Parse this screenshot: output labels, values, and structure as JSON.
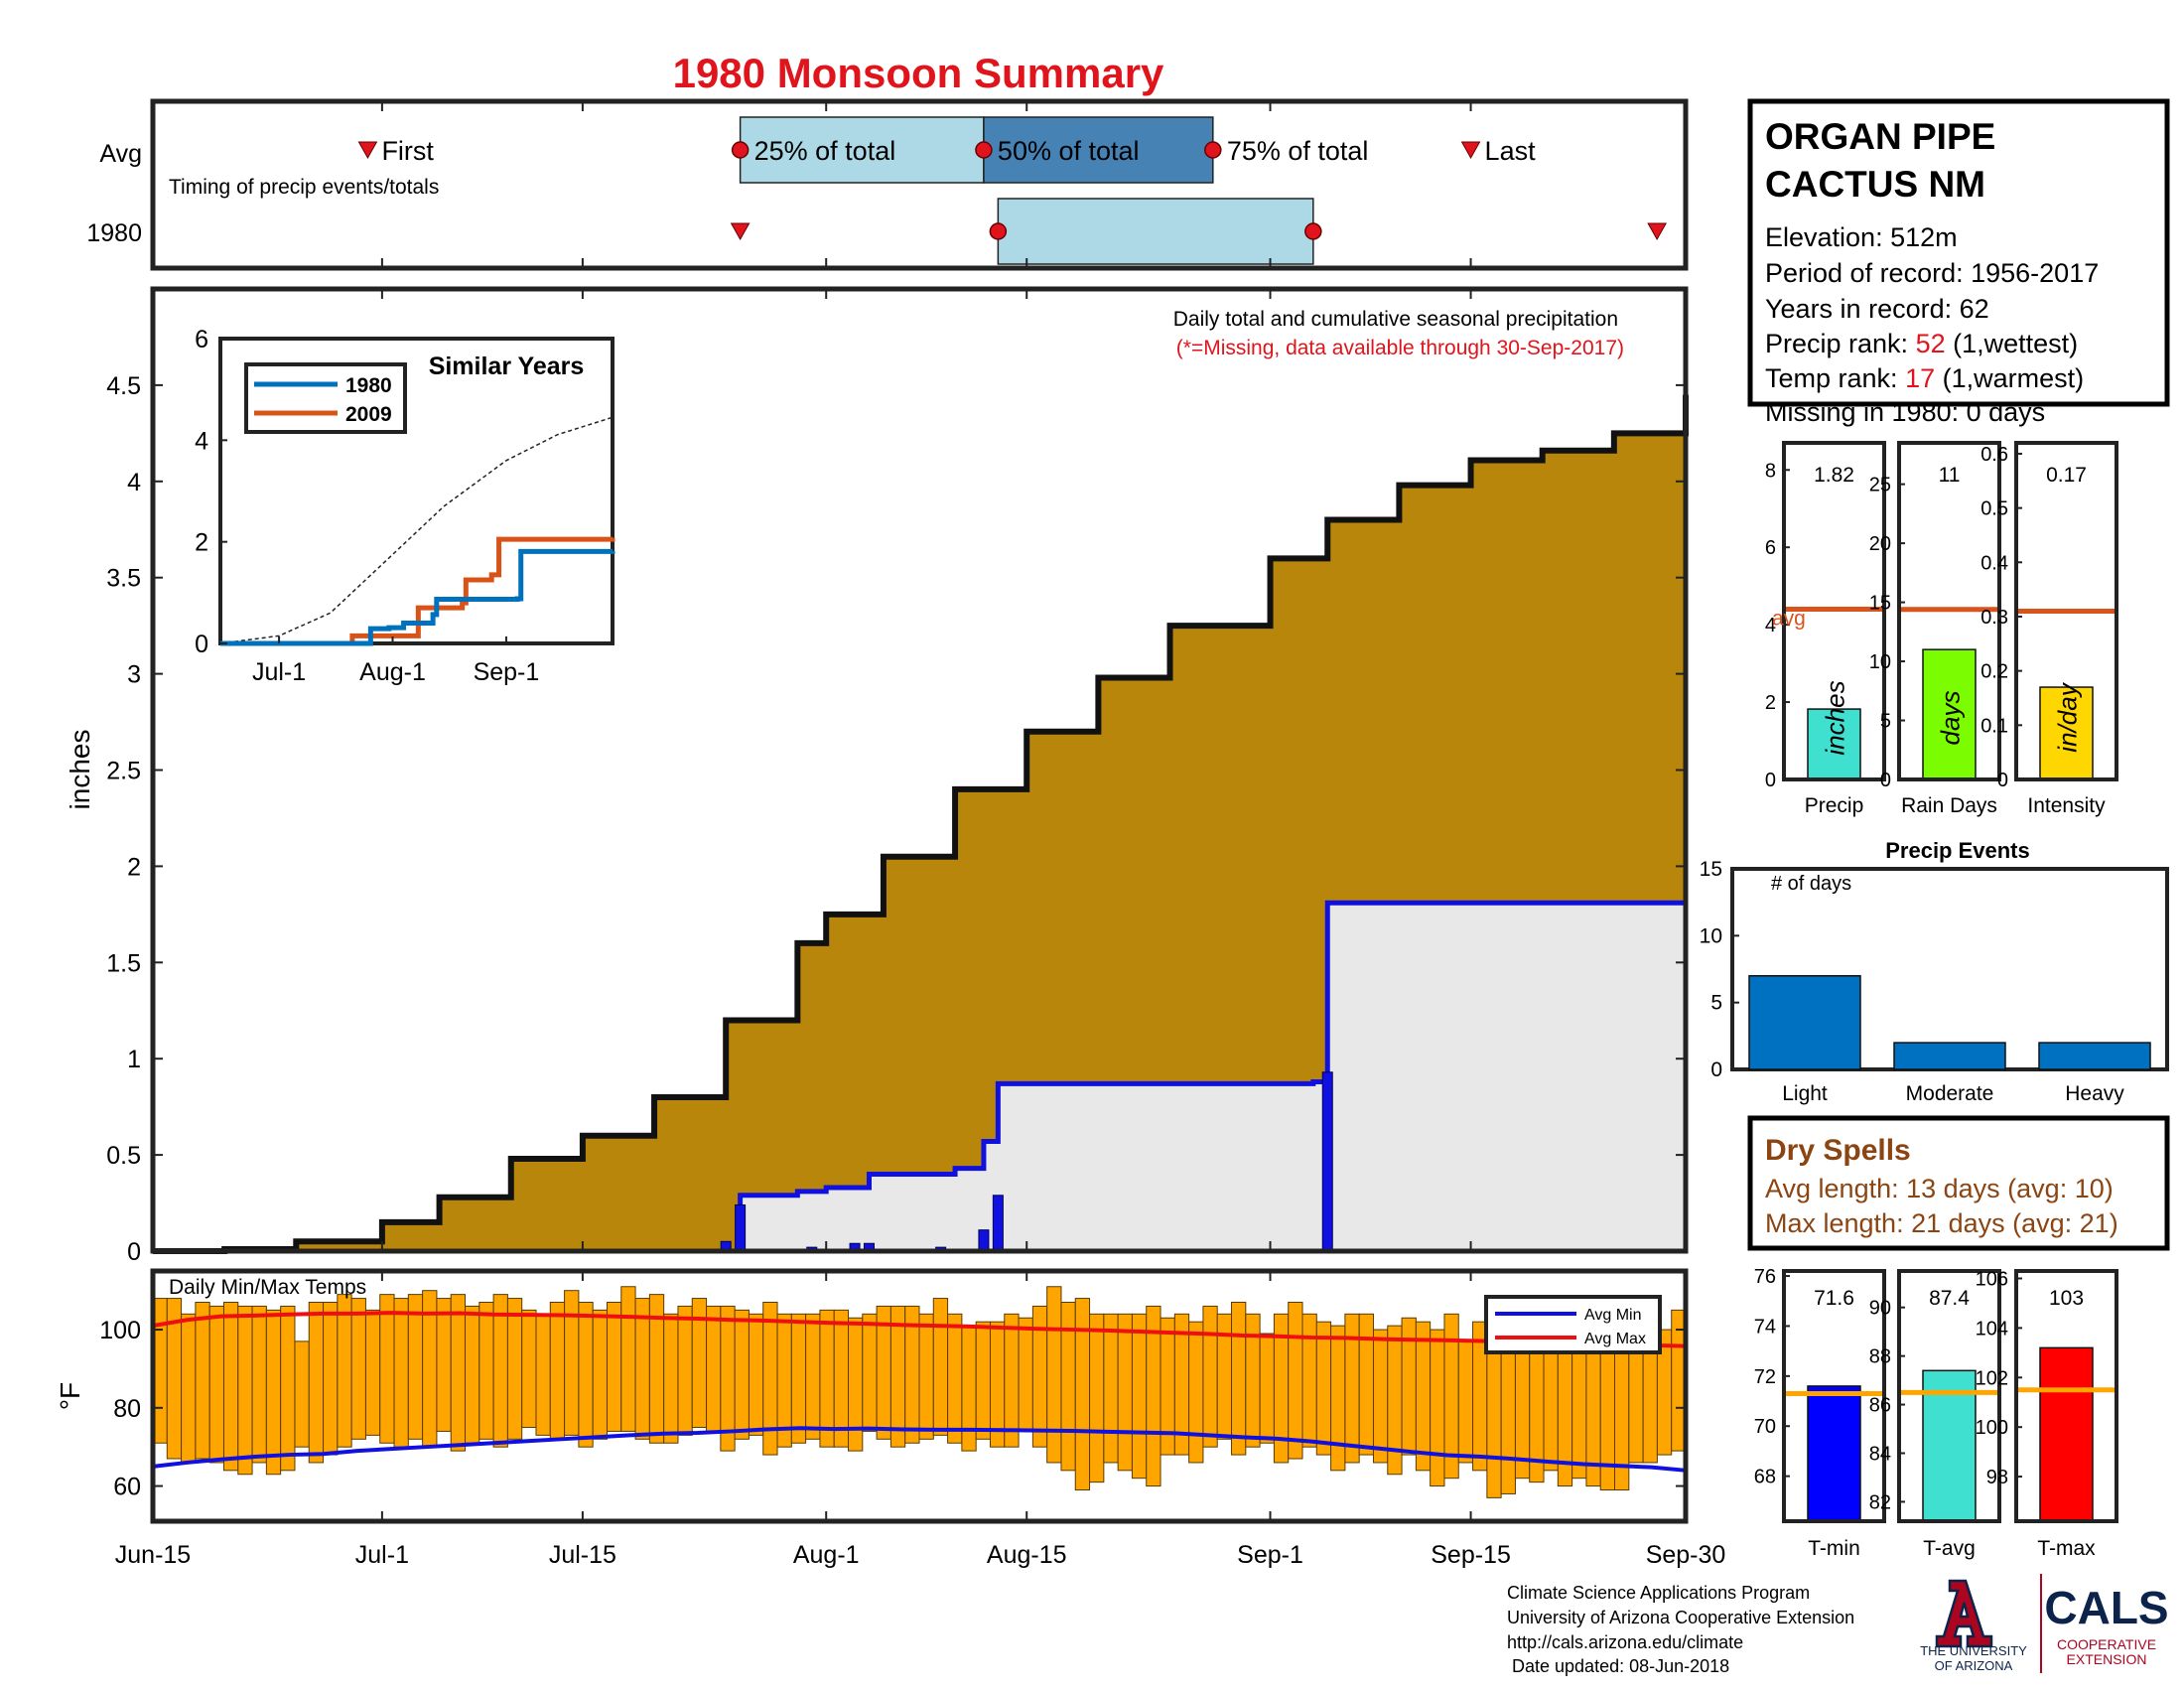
{
  "page_title": "1980 Monsoon Summary",
  "colors": {
    "title_red": "#e0141c",
    "avg_orange": "#d9541c",
    "avg_fill": "#b8860b",
    "obs_blue": "#1010e0",
    "obs_fill": "#e8e8e8",
    "quartile_light": "#add8e6",
    "quartile_dark": "#4682b4",
    "temp_bar": "#ffa500",
    "dry_spell_brown": "#8b4513",
    "events_blue": "#0070c0",
    "series_1980": "#0072bd",
    "series_2009": "#d95319"
  },
  "timing": {
    "row_avg": "Avg",
    "row_year": "1980",
    "caption": "Timing of precip events/totals",
    "first_label": "First",
    "last_label": "Last",
    "p25_label": "25% of total",
    "p50_label": "50% of total",
    "p75_label": "75% of total",
    "avg": {
      "first": "2017-06-30",
      "p25": "2017-07-26",
      "p50": "2017-08-12",
      "p75": "2017-08-28",
      "last": "2017-09-15"
    },
    "year": {
      "first": "2017-07-26",
      "p25": "2017-08-13",
      "p75": "2017-09-04",
      "last": "2017-09-28"
    }
  },
  "station": {
    "name_line1": "ORGAN PIPE",
    "name_line2": "CACTUS NM",
    "elevation": "Elevation: 512m",
    "period": "Period of record: 1956-2017",
    "years": "Years in record: 62",
    "precip_rank_prefix": "Precip rank: ",
    "precip_rank": "52",
    "precip_rank_suffix": " (1,wettest)",
    "temp_rank_prefix": "Temp rank: ",
    "temp_rank": "17",
    "temp_rank_suffix": " (1,warmest)",
    "missing": "Missing in 1980: 0 days"
  },
  "main_chart": {
    "title": "Daily total and cumulative seasonal precipitation",
    "note": "(*=Missing, data available through 30-Sep-2017)",
    "ylabel": "inches"
  },
  "inset": {
    "title": "Similar Years",
    "legend": [
      "1980",
      "2009"
    ]
  },
  "summary_bars": [
    {
      "label": "Precip",
      "value_text": "1.82",
      "unit": "inches",
      "value": 1.82,
      "avg": 4.4,
      "ymax": 8.7,
      "ticks": [
        0,
        2,
        4,
        6,
        8
      ],
      "color": "#40e0d0",
      "avg_label": "avg"
    },
    {
      "label": "Rain Days",
      "value_text": "11",
      "unit": "days",
      "value": 11,
      "avg": 14.4,
      "ymax": 28.5,
      "ticks": [
        0,
        5,
        10,
        15,
        20,
        25
      ],
      "color": "#7cfc00"
    },
    {
      "label": "Intensity",
      "value_text": "0.17",
      "unit": "in/day",
      "value": 0.17,
      "avg": 0.31,
      "ymax": 0.62,
      "ticks": [
        0,
        0.1,
        0.2,
        0.3,
        0.4,
        0.5,
        0.6
      ],
      "color": "#ffd700"
    }
  ],
  "precip_events": {
    "title": "Precip Events",
    "ylabel": "# of days",
    "categories": [
      "Light",
      "Moderate",
      "Heavy"
    ],
    "values": [
      7,
      2,
      2
    ],
    "ylim": [
      0,
      15
    ],
    "ticks": [
      0,
      5,
      10,
      15
    ]
  },
  "dry_spells": {
    "title": "Dry Spells",
    "avg_length": "Avg length: 13 days (avg: 10)",
    "max_length": "Max length: 21 days (avg: 21)"
  },
  "temps": {
    "title": "Daily Min/Max Temps",
    "ylabel": "°F",
    "legend_min": "Avg Min",
    "legend_max": "Avg Max",
    "ylim": [
      51,
      115
    ],
    "ticks": [
      60,
      80,
      100
    ]
  },
  "temp_bars": [
    {
      "label": "T-min",
      "value_text": "71.6",
      "value": 71.6,
      "avg": 71.3,
      "ylim": [
        66.2,
        76.2
      ],
      "ticks": [
        68,
        70,
        72,
        74,
        76
      ],
      "color": "#0000ff"
    },
    {
      "label": "T-avg",
      "value_text": "87.4",
      "value": 87.4,
      "avg": 86.5,
      "ylim": [
        81.2,
        91.5
      ],
      "ticks": [
        82,
        84,
        86,
        88,
        90
      ],
      "color": "#40e0d0"
    },
    {
      "label": "T-max",
      "value_text": "103",
      "value": 103.2,
      "avg": 101.5,
      "ylim": [
        96.2,
        106.3
      ],
      "ticks": [
        98,
        100,
        102,
        104,
        106
      ],
      "color": "#ff0000"
    }
  ],
  "x_axis": {
    "ticks": [
      {
        "label": "Jun-15",
        "date": "2017-06-15"
      },
      {
        "label": "Jul-1",
        "date": "2017-07-01"
      },
      {
        "label": "Jul-15",
        "date": "2017-07-15"
      },
      {
        "label": "Aug-1",
        "date": "2017-08-01"
      },
      {
        "label": "Aug-15",
        "date": "2017-08-15"
      },
      {
        "label": "Sep-1",
        "date": "2017-09-01"
      },
      {
        "label": "Sep-15",
        "date": "2017-09-15"
      },
      {
        "label": "Sep-30",
        "date": "2017-09-30"
      }
    ]
  },
  "footer": {
    "line1": "Climate Science Applications Program",
    "line2": "University of Arizona Cooperative Extension",
    "line3": "http://cals.arizona.edu/climate",
    "line4": " Date updated: 08-Jun-2018",
    "ua_logo_text1": "THE UNIVERSITY",
    "ua_logo_text2": "OF ARIZONA",
    "cals_logo": "CALS",
    "cals_sub1": "COOPERATIVE",
    "cals_sub2": "EXTENSION"
  },
  "chart_data": [
    {
      "type": "area",
      "title": "Daily total and cumulative seasonal precipitation",
      "ylabel": "inches",
      "ylim": [
        0,
        5
      ],
      "yticks": [
        0,
        0.5,
        1,
        1.5,
        2,
        2.5,
        3,
        3.5,
        4,
        4.5
      ],
      "x_range": [
        "2017-06-15",
        "2017-09-30"
      ],
      "series": [
        {
          "name": "Avg",
          "x": [
            "2017-06-15",
            "2017-06-20",
            "2017-06-25",
            "2017-07-01",
            "2017-07-05",
            "2017-07-10",
            "2017-07-15",
            "2017-07-20",
            "2017-07-25",
            "2017-07-30",
            "2017-08-01",
            "2017-08-05",
            "2017-08-10",
            "2017-08-15",
            "2017-08-20",
            "2017-08-25",
            "2017-09-01",
            "2017-09-05",
            "2017-09-10",
            "2017-09-15",
            "2017-09-20",
            "2017-09-25",
            "2017-09-30"
          ],
          "values": [
            0.0,
            0.01,
            0.05,
            0.15,
            0.28,
            0.48,
            0.6,
            0.8,
            1.2,
            1.6,
            1.75,
            2.05,
            2.4,
            2.7,
            2.98,
            3.25,
            3.6,
            3.8,
            3.98,
            4.11,
            4.16,
            4.25,
            4.45
          ]
        },
        {
          "name": "1980",
          "x": [
            "2017-06-15",
            "2017-07-25",
            "2017-07-26",
            "2017-07-30",
            "2017-08-01",
            "2017-08-04",
            "2017-08-10",
            "2017-08-12",
            "2017-08-13",
            "2017-09-04",
            "2017-09-05",
            "2017-09-28",
            "2017-09-30"
          ],
          "values": [
            0.0,
            0.0,
            0.29,
            0.31,
            0.33,
            0.4,
            0.43,
            0.57,
            0.87,
            0.88,
            1.81,
            1.81,
            1.82
          ]
        }
      ],
      "daily_totals": {
        "x": [
          "2017-07-25",
          "2017-07-26",
          "2017-07-31",
          "2017-08-03",
          "2017-08-04",
          "2017-08-09",
          "2017-08-12",
          "2017-08-13",
          "2017-09-05",
          "2017-09-28"
        ],
        "values": [
          0.05,
          0.24,
          0.02,
          0.04,
          0.04,
          0.02,
          0.11,
          0.29,
          0.93,
          0.01
        ]
      }
    },
    {
      "type": "line",
      "title": "Similar Years",
      "ylim": [
        0,
        6
      ],
      "yticks": [
        0,
        2,
        4,
        6
      ],
      "x_ticks": [
        "Jul-1",
        "Aug-1",
        "Sep-1"
      ],
      "series": [
        {
          "name": "1980",
          "x": [
            "2017-06-15",
            "2017-07-25",
            "2017-07-26",
            "2017-07-31",
            "2017-08-04",
            "2017-08-12",
            "2017-08-13",
            "2017-09-04",
            "2017-09-05",
            "2017-09-30"
          ],
          "values": [
            0,
            0,
            0.29,
            0.31,
            0.4,
            0.57,
            0.87,
            0.88,
            1.81,
            1.82
          ]
        },
        {
          "name": "2009",
          "x": [
            "2017-06-15",
            "2017-07-20",
            "2017-07-21",
            "2017-08-06",
            "2017-08-08",
            "2017-08-20",
            "2017-08-21",
            "2017-08-28",
            "2017-08-30",
            "2017-09-30"
          ],
          "values": [
            0,
            0,
            0.15,
            0.15,
            0.7,
            0.8,
            1.25,
            1.35,
            2.05,
            2.08
          ]
        },
        {
          "name": "Avg",
          "x": [
            "2017-06-15",
            "2017-07-01",
            "2017-07-15",
            "2017-08-01",
            "2017-08-15",
            "2017-09-01",
            "2017-09-15",
            "2017-09-30"
          ],
          "values": [
            0,
            0.15,
            0.6,
            1.75,
            2.7,
            3.6,
            4.11,
            4.45
          ]
        }
      ]
    },
    {
      "type": "bar",
      "title": "Daily Min/Max Temps",
      "ylabel": "°F",
      "ylim": [
        51,
        115
      ],
      "x_range": [
        "2017-06-15",
        "2017-09-30"
      ],
      "low": [
        71,
        67,
        66,
        67,
        66,
        64,
        63,
        66,
        63,
        64,
        70,
        66,
        68,
        70,
        72,
        73,
        71,
        70,
        72,
        70,
        74,
        69,
        71,
        72,
        70,
        72,
        75,
        73,
        72,
        73,
        70,
        72,
        74,
        74,
        72,
        71,
        71,
        73,
        75,
        74,
        69,
        72,
        73,
        68,
        70,
        71,
        72,
        70,
        70,
        69,
        74,
        72,
        70,
        71,
        72,
        73,
        71,
        69,
        72,
        70,
        70,
        74,
        70,
        66,
        64,
        59,
        61,
        66,
        64,
        62,
        60,
        68,
        68,
        66,
        70,
        72,
        68,
        70,
        71,
        66,
        67,
        70,
        68,
        64,
        66,
        68,
        66,
        63,
        68,
        64,
        60,
        62,
        66,
        64,
        57,
        58,
        62,
        61,
        64,
        60,
        62,
        60,
        59,
        59,
        66,
        66,
        68,
        69
      ],
      "high": [
        108,
        108,
        104,
        107,
        106,
        107,
        106,
        106,
        105,
        106,
        97,
        107,
        107,
        109,
        108,
        105,
        109,
        108,
        109,
        110,
        108,
        109,
        106,
        107,
        109,
        108,
        105,
        104,
        107,
        110,
        107,
        105,
        107,
        111,
        108,
        109,
        104,
        106,
        108,
        106,
        106,
        105,
        104,
        107,
        104,
        104,
        104,
        105,
        105,
        103,
        104,
        106,
        106,
        106,
        104,
        108,
        104,
        101,
        102,
        102,
        104,
        103,
        106,
        111,
        107,
        108,
        104,
        104,
        104,
        104,
        106,
        103,
        104,
        102,
        106,
        104,
        107,
        104,
        99,
        104,
        107,
        104,
        102,
        101,
        104,
        104,
        100,
        101,
        103,
        102,
        100,
        104,
        97,
        102,
        102,
        98,
        104,
        101,
        98,
        98,
        101,
        101,
        100,
        98,
        100,
        103,
        100,
        105
      ],
      "avg_min": [
        65,
        66,
        66.8,
        67.5,
        68,
        68.2,
        69,
        69.5,
        70,
        70.5,
        71,
        71.5,
        72,
        72.5,
        73,
        73.4,
        73.6,
        74,
        74.5,
        74.8,
        74.6,
        74.7,
        74.5,
        74.4,
        74.4,
        74.3,
        74.2,
        74.1,
        73.9,
        73.7,
        73.5,
        73,
        72.5,
        72.1,
        71.4,
        70.5,
        69.6,
        68.7,
        67.9,
        67.5,
        66.9,
        66.2,
        65.6,
        65.2,
        64.8,
        64
      ],
      "avg_max": [
        101,
        102.5,
        103.4,
        103.6,
        103.9,
        104.1,
        104.1,
        104.3,
        104.1,
        104.2,
        103.9,
        103.8,
        103.7,
        103.5,
        103.3,
        103,
        102.8,
        102.5,
        102.3,
        102,
        101.7,
        101.5,
        101.2,
        101,
        100.8,
        100.5,
        100.2,
        100,
        99.8,
        99.5,
        99.2,
        98.9,
        98.5,
        98.3,
        98,
        97.9,
        97.6,
        97.4,
        97.3,
        97.1,
        97,
        96.8,
        96.5,
        96.3,
        96,
        95.8
      ]
    },
    {
      "type": "bar",
      "title": "Precip Events",
      "ylabel": "# of days",
      "categories": [
        "Light",
        "Moderate",
        "Heavy"
      ],
      "values": [
        7,
        2,
        2
      ],
      "ylim": [
        0,
        15
      ]
    }
  ]
}
